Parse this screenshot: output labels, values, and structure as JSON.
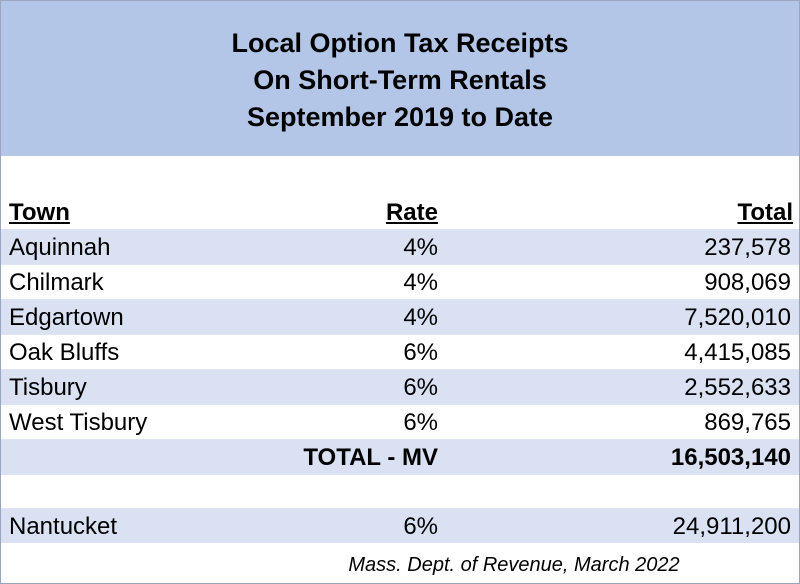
{
  "title": {
    "line1": "Local Option Tax Receipts",
    "line2": "On Short-Term Rentals",
    "line3": "September 2019 to Date"
  },
  "table": {
    "headers": {
      "town": "Town",
      "rate": "Rate",
      "total": "Total"
    },
    "rows": [
      {
        "town": "Aquinnah",
        "rate": "4%",
        "total": "237,578"
      },
      {
        "town": "Chilmark",
        "rate": "4%",
        "total": "908,069"
      },
      {
        "town": "Edgartown",
        "rate": "4%",
        "total": "7,520,010"
      },
      {
        "town": "Oak Bluffs",
        "rate": "6%",
        "total": "4,415,085"
      },
      {
        "town": "Tisbury",
        "rate": "6%",
        "total": "2,552,633"
      },
      {
        "town": "West Tisbury",
        "rate": "6%",
        "total": "869,765"
      }
    ],
    "total_row": {
      "label": "TOTAL - MV",
      "total": "16,503,140"
    },
    "extra_row": {
      "town": "Nantucket",
      "rate": "6%",
      "total": "24,911,200"
    }
  },
  "source": "Mass. Dept. of Revenue, March 2022"
}
